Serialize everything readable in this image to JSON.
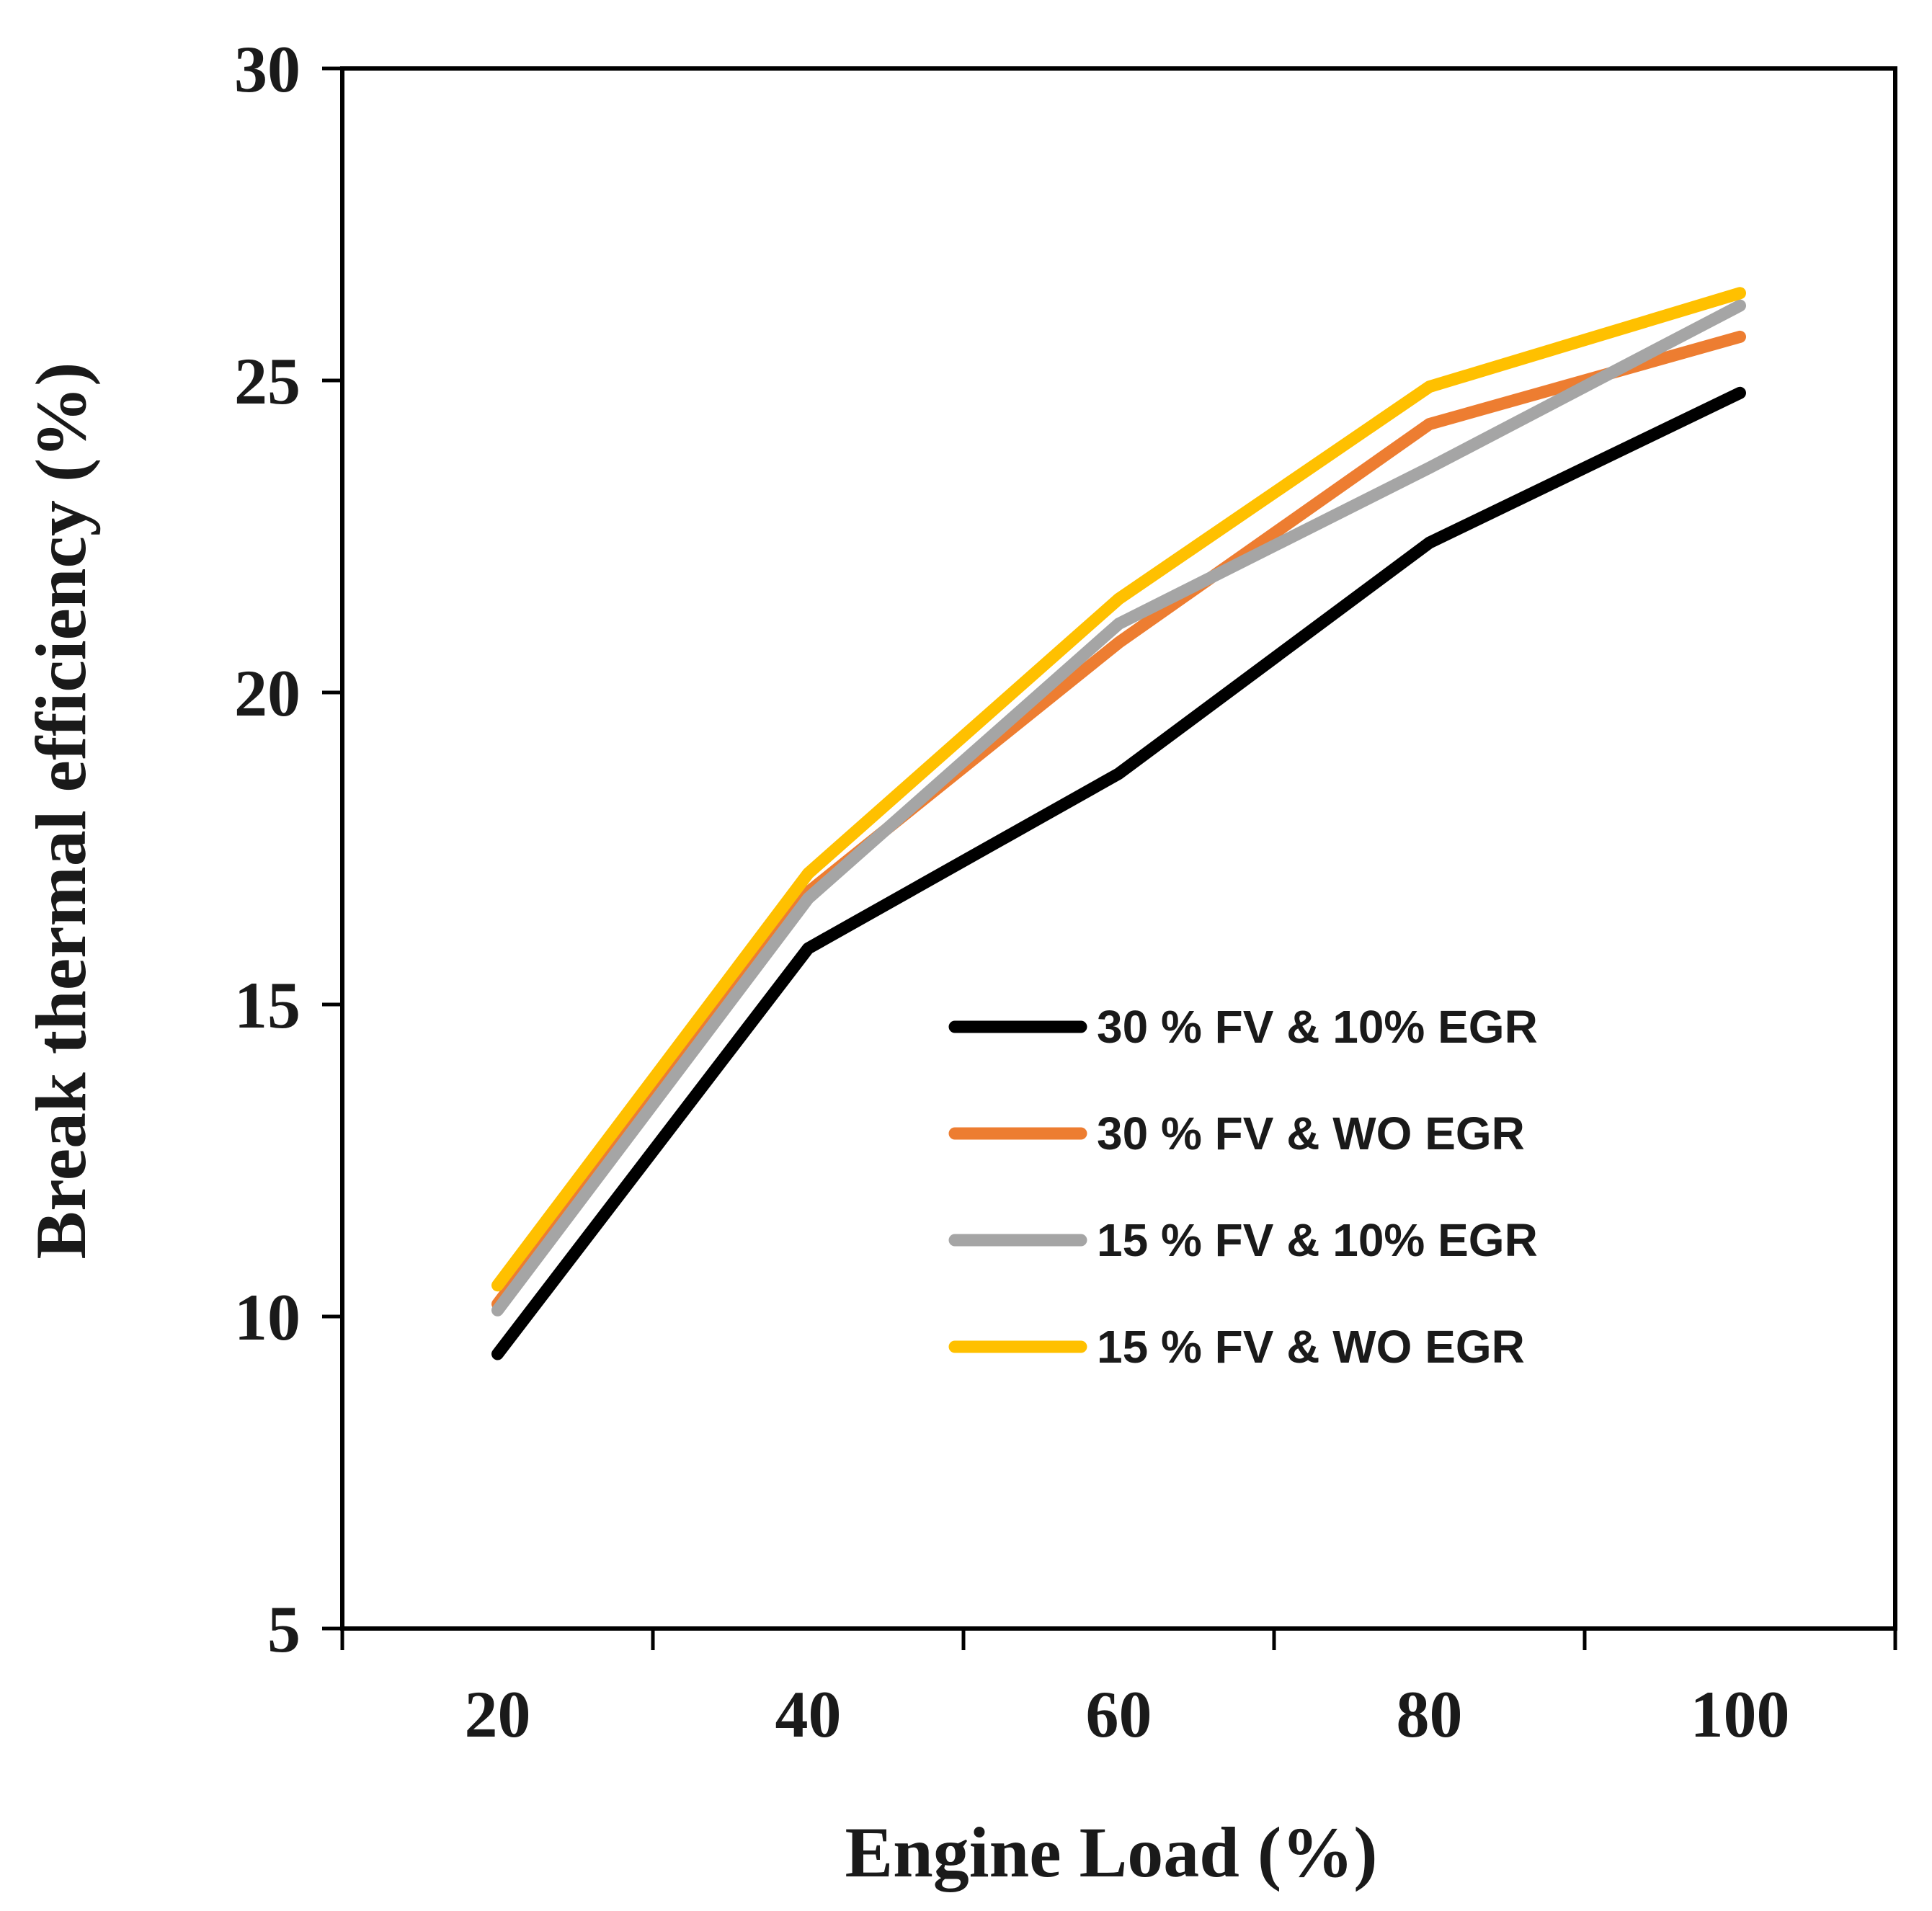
{
  "chart_data": {
    "type": "line",
    "title": "",
    "xlabel": "Engine Load (%)",
    "ylabel": "Break thermal efficiency (%)",
    "categories": [
      "20",
      "40",
      "60",
      "80",
      "100"
    ],
    "x": [
      20,
      40,
      60,
      80,
      100
    ],
    "ylim": [
      5,
      30
    ],
    "yticks": [
      "5",
      "10",
      "15",
      "20",
      "25",
      "30"
    ],
    "ytick_values": [
      5,
      10,
      15,
      20,
      25,
      30
    ],
    "grid": false,
    "legend_position": "center-right",
    "series": [
      {
        "name": "30 % FV & 10% EGR",
        "color": "#000000",
        "values": [
          9.4,
          15.9,
          18.7,
          22.4,
          24.8
        ]
      },
      {
        "name": "30 % FV & WO EGR",
        "color": "#ED7D31",
        "values": [
          10.2,
          16.8,
          20.8,
          24.3,
          25.7
        ]
      },
      {
        "name": "15 % FV & 10% EGR",
        "color": "#A5A5A5",
        "values": [
          10.1,
          16.7,
          21.1,
          23.6,
          26.2
        ]
      },
      {
        "name": "15 % FV & WO EGR",
        "color": "#FFC000",
        "values": [
          10.5,
          17.1,
          21.5,
          24.9,
          26.4
        ]
      }
    ]
  }
}
